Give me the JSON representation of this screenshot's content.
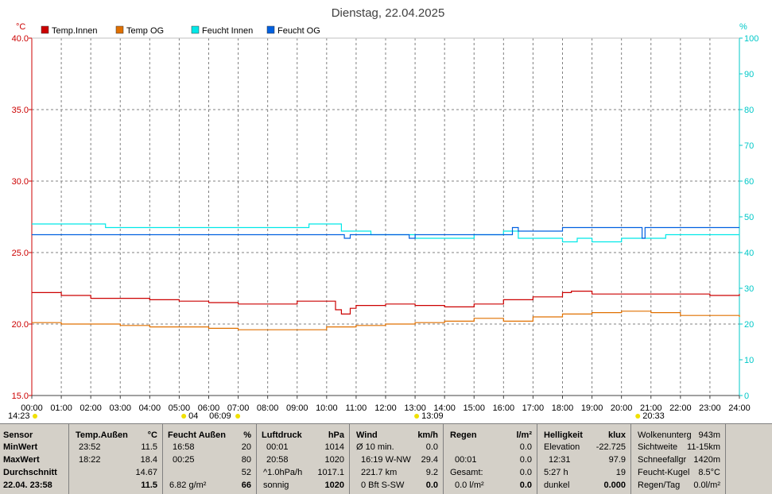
{
  "title": "Dienstag, 22.04.2025",
  "left_unit": "°C",
  "right_unit": "%",
  "colors": {
    "temp_innen": "#cc0000",
    "temp_og": "#e07000",
    "feucht_innen": "#00e8e8",
    "feucht_og": "#0060e0",
    "axis_left": "#cc0000",
    "axis_right": "#00c8c8",
    "grid": "#808080"
  },
  "chart_data": {
    "type": "line",
    "title": "Dienstag, 22.04.2025",
    "x_ticks": [
      "00:00",
      "01:00",
      "02:00",
      "03:00",
      "04:00",
      "05:00",
      "06:00",
      "07:00",
      "08:00",
      "09:00",
      "10:00",
      "11:00",
      "12:00",
      "13:00",
      "14:00",
      "15:00",
      "16:00",
      "17:00",
      "18:00",
      "19:00",
      "20:00",
      "21:00",
      "22:00",
      "23:00",
      "24:00"
    ],
    "x_range_hours": [
      0,
      24
    ],
    "y_left": {
      "unit": "°C",
      "ylim": [
        15,
        40
      ],
      "ticks": [
        "15.0",
        "20.0",
        "25.0",
        "30.0",
        "35.0",
        "40.0"
      ]
    },
    "y_right": {
      "unit": "%",
      "ylim": [
        0,
        100
      ],
      "ticks": [
        "0",
        "10",
        "20",
        "30",
        "40",
        "50",
        "60",
        "70",
        "80",
        "90",
        "100"
      ]
    },
    "grid": true,
    "legend": "top-left",
    "series": [
      {
        "name": "Temp.Innen",
        "axis": "left",
        "color": "#cc0000",
        "hours": [
          0,
          1,
          2,
          3,
          4,
          5,
          6,
          7,
          8,
          9,
          10,
          10.3,
          10.5,
          10.8,
          11,
          12,
          13,
          14,
          15,
          16,
          17,
          18,
          18.3,
          19,
          20,
          21,
          22,
          23,
          24
        ],
        "values": [
          22.2,
          22.0,
          21.8,
          21.8,
          21.7,
          21.6,
          21.5,
          21.4,
          21.4,
          21.6,
          21.6,
          21.0,
          20.7,
          21.1,
          21.3,
          21.4,
          21.3,
          21.2,
          21.4,
          21.7,
          21.9,
          22.2,
          22.3,
          22.1,
          22.1,
          22.1,
          22.1,
          22.0,
          22.1
        ]
      },
      {
        "name": "Temp OG",
        "axis": "left",
        "color": "#e07000",
        "hours": [
          0,
          1,
          2,
          3,
          4,
          5,
          6,
          7,
          8,
          9,
          10,
          11,
          12,
          13,
          14,
          15,
          16,
          17,
          18,
          19,
          20,
          21,
          22,
          23,
          24
        ],
        "values": [
          20.1,
          20.0,
          20.0,
          19.9,
          19.8,
          19.8,
          19.7,
          19.6,
          19.6,
          19.6,
          19.8,
          19.9,
          20.0,
          20.1,
          20.2,
          20.4,
          20.2,
          20.5,
          20.7,
          20.8,
          20.9,
          20.8,
          20.6,
          20.6,
          20.5
        ]
      },
      {
        "name": "Feucht Innen",
        "axis": "right",
        "color": "#00e8e8",
        "hours": [
          0,
          2.4,
          2.5,
          9.3,
          9.4,
          10.0,
          10.5,
          11.0,
          11.5,
          12.5,
          13.0,
          14.0,
          15.0,
          16.0,
          16.5,
          17.0,
          18.0,
          18.5,
          19.0,
          20.0,
          21.0,
          21.5,
          24
        ],
        "values": [
          48,
          48,
          47,
          47,
          48,
          48,
          46,
          46,
          45,
          45,
          44,
          44,
          45,
          46,
          44,
          44,
          43,
          44,
          43,
          44,
          44,
          45,
          45
        ]
      },
      {
        "name": "Feucht OG",
        "axis": "right",
        "color": "#0060e0",
        "hours": [
          0,
          10.5,
          10.6,
          10.8,
          10.9,
          12.6,
          12.8,
          13.0,
          13.1,
          16.0,
          16.3,
          16.5,
          17.0,
          18.0,
          20.0,
          20.6,
          20.7,
          20.8,
          24
        ],
        "values": [
          45,
          45,
          44,
          45,
          45,
          45,
          44,
          45,
          45,
          45,
          47,
          46,
          46,
          47,
          47,
          47,
          44,
          47,
          47
        ]
      }
    ],
    "annotations": [
      {
        "position": "under-axis",
        "hours": 0,
        "label": "14:23"
      },
      {
        "position": "under-axis",
        "hours": 5.1,
        "label": "04"
      },
      {
        "position": "under-axis",
        "hours": 5.8,
        "label": "06:09"
      },
      {
        "position": "under-axis",
        "hours": 13.0,
        "label": "13:09"
      },
      {
        "position": "under-axis",
        "hours": 20.5,
        "label": "20:33"
      }
    ]
  },
  "table": {
    "sensor": {
      "h1": "Sensor",
      "r1": "MinWert",
      "r2": "MaxWert",
      "r3": "Durchschnitt",
      "r4": "22.04. 23:58"
    },
    "temp": {
      "h1": "Temp.Außen",
      "h2": "°C",
      "r1t": "23:52",
      "r1v": "11.5",
      "r2t": "18:22",
      "r2v": "18.4",
      "r3v": "14.67",
      "r4v": "11.5"
    },
    "feucht": {
      "h1": "Feucht Außen",
      "h2": "%",
      "r1t": "16:58",
      "r1v": "20",
      "r2t": "00:25",
      "r2v": "80",
      "r3v": "52",
      "r4t": "6.82 g/m²",
      "r4v": "66"
    },
    "luft": {
      "h1": "Luftdruck",
      "h2": "hPa",
      "r1t": "00:01",
      "r1v": "1014",
      "r2t": "20:58",
      "r2v": "1020",
      "r3t": "^1.0hPa/h",
      "r3v": "1017.1",
      "r4t": "sonnig",
      "r4v": "1020"
    },
    "wind": {
      "h1": "Wind",
      "h2": "km/h",
      "r1t": "Ø 10 min.",
      "r1v": "0.0",
      "r2t": "16:19  W-NW",
      "r2v": "29.4",
      "r3t": "221.7 km",
      "r3v": "9.2",
      "r4t": "0 Bft S-SW",
      "r4v": "0.0"
    },
    "regen": {
      "h1": "Regen",
      "h2": "l/m²",
      "r1v": "0.0",
      "r2t": "00:01",
      "r2v": "0.0",
      "r3t": "Gesamt:",
      "r3v": "0.0",
      "r4t": "0.0 l/m²",
      "r4v": "0.0"
    },
    "hell": {
      "h1": "Helligkeit",
      "h2": "klux",
      "r1t": "Elevation",
      "r1v": "-22.725",
      "r2t": "12:31",
      "r2v": "97.9",
      "r3t": "5:27 h",
      "r3v": "19",
      "r4t": "dunkel",
      "r4v": "0.000"
    },
    "extra": {
      "r1t": "Wolkenunterg",
      "r1v": "943m",
      "r2t": "Sichtweite",
      "r2v": "11-15km",
      "r3t": "Schneefallgr",
      "r3v": "1420m",
      "r4t": "Feucht-Kugel",
      "r4v": "8.5°C",
      "r5t": "Regen/Tag",
      "r5v": "0.0l/m²"
    }
  }
}
